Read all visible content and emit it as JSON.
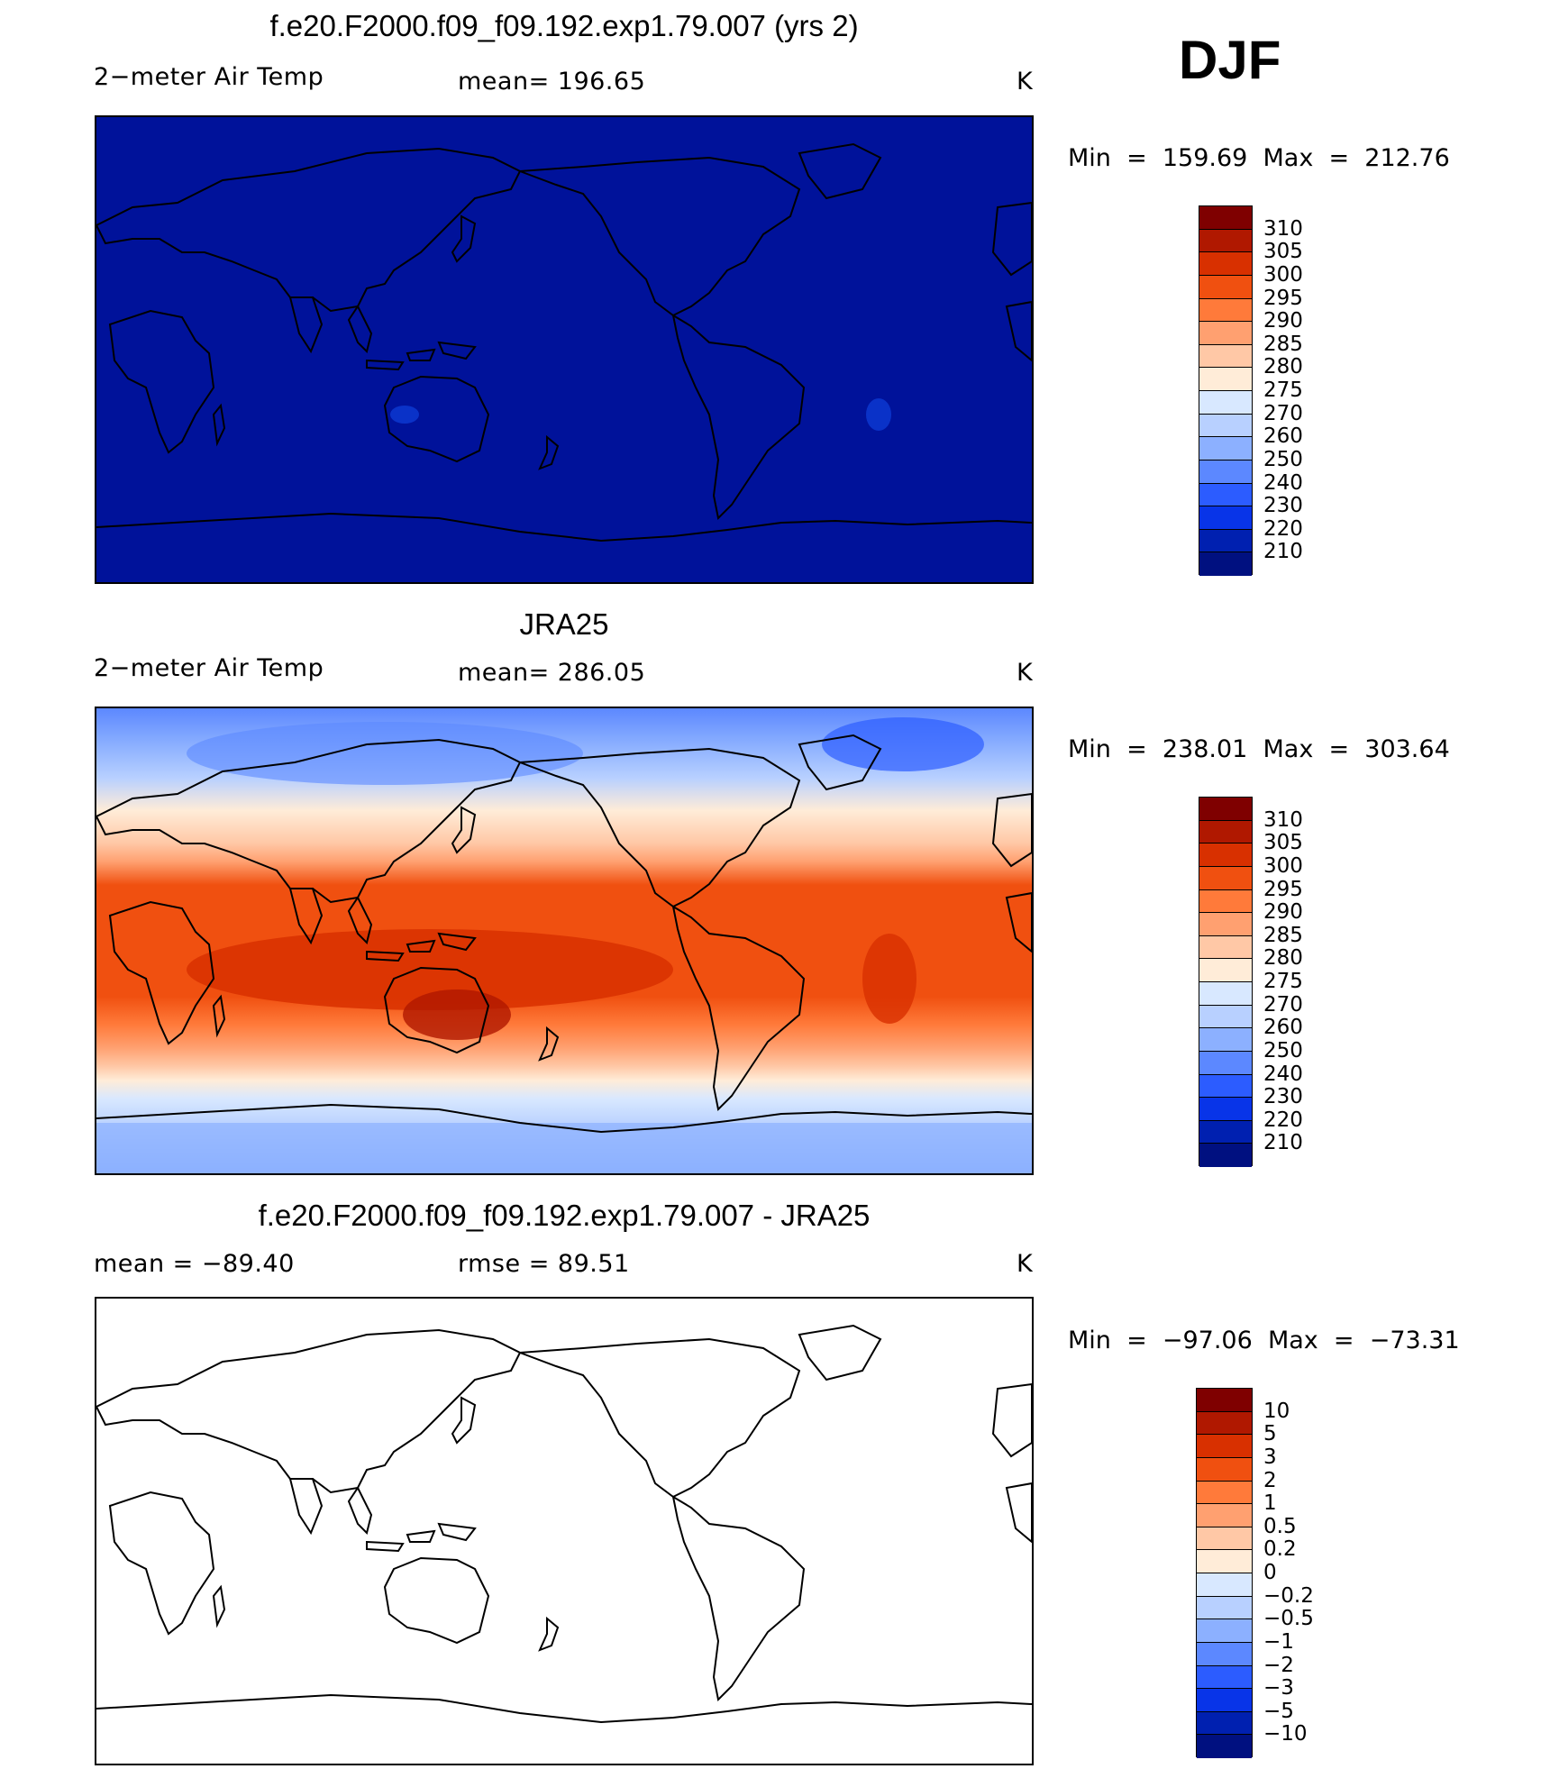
{
  "season": "DJF",
  "panels": [
    {
      "title": "f.e20.F2000.f09_f09.192.exp1.79.007 (yrs 2)",
      "left_label": "2−meter Air Temp",
      "center_label": "mean=  196.65",
      "units": "K",
      "min_max": "Min  =  159.69  Max  =  212.76",
      "fill": "uniform-dark"
    },
    {
      "title": "JRA25",
      "left_label": "2−meter Air Temp",
      "center_label": "mean=  286.05",
      "units": "K",
      "min_max": "Min  =  238.01  Max  =  303.64",
      "fill": "temperature-field"
    },
    {
      "title": "f.e20.F2000.f09_f09.192.exp1.79.007 - JRA25",
      "left_label": "mean  =  −89.40",
      "center_label": "rmse  =    89.51",
      "units": "K",
      "min_max": "Min  =  −97.06  Max  =  −73.31",
      "fill": "blank"
    }
  ],
  "colorbars": {
    "temperature": {
      "labels": [
        "310",
        "305",
        "300",
        "295",
        "290",
        "285",
        "280",
        "275",
        "270",
        "260",
        "250",
        "240",
        "230",
        "220",
        "210"
      ],
      "colors": [
        "#7f0000",
        "#b01800",
        "#d83000",
        "#f05010",
        "#ff7a3a",
        "#ffa070",
        "#ffc8a6",
        "#ffecd8",
        "#d8e8ff",
        "#b8d0ff",
        "#8cb0ff",
        "#5c88ff",
        "#2c5cff",
        "#0834e8",
        "#0020b0",
        "#001080"
      ]
    },
    "difference": {
      "labels": [
        "10",
        "5",
        "3",
        "2",
        "1",
        "0.5",
        "0.2",
        "0",
        "−0.2",
        "−0.5",
        "−1",
        "−2",
        "−3",
        "−5",
        "−10"
      ],
      "colors": [
        "#7f0000",
        "#b01800",
        "#d83000",
        "#f05010",
        "#ff7a3a",
        "#ffa070",
        "#ffc8a6",
        "#ffecd8",
        "#d8e8ff",
        "#b8d0ff",
        "#8cb0ff",
        "#5c88ff",
        "#2c5cff",
        "#0834e8",
        "#0020b0",
        "#001080"
      ]
    }
  },
  "map_colors": {
    "uniform_fill": "#00129a",
    "outline": "#000000"
  }
}
